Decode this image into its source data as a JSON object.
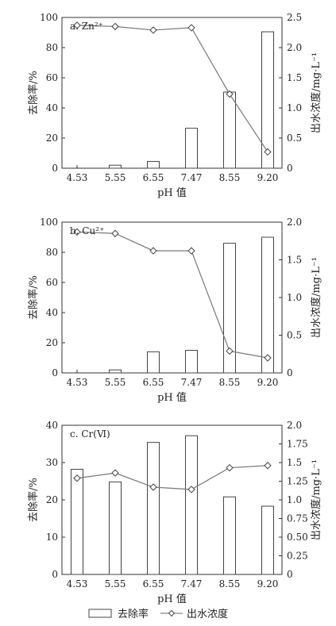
{
  "chart_data": [
    {
      "type": "bar",
      "panel_label": "a. Zn²⁺",
      "categories": [
        "4.53",
        "5.55",
        "6.55",
        "7.47",
        "8.55",
        "9.20"
      ],
      "xlabel": "pH 值",
      "ylabel": "去除率/%",
      "y2label": "出水浓度/mg·L⁻¹",
      "ylim": [
        0,
        100
      ],
      "y2lim": [
        0,
        2.5
      ],
      "yticks": [
        0,
        20,
        40,
        60,
        80,
        100
      ],
      "y2ticks": [
        "0",
        "0.5",
        "1.0",
        "1.5",
        "2.0",
        "2.5"
      ],
      "series": [
        {
          "name": "去除率",
          "kind": "bar",
          "axis": "left",
          "values": [
            0,
            2,
            4.5,
            26.5,
            50.5,
            90.5
          ]
        },
        {
          "name": "出水浓度",
          "kind": "line",
          "axis": "right",
          "values": [
            2.37,
            2.35,
            2.29,
            2.33,
            1.23,
            0.27
          ]
        }
      ]
    },
    {
      "type": "bar",
      "panel_label": "b. Cu²⁺",
      "categories": [
        "4.53",
        "5.55",
        "6.55",
        "7.47",
        "8.55",
        "9.20"
      ],
      "xlabel": "pH 值",
      "ylabel": "去除率/%",
      "y2label": "出水浓度/mg·L⁻¹",
      "ylim": [
        0,
        100
      ],
      "y2lim": [
        0,
        2.0
      ],
      "yticks": [
        0,
        20,
        40,
        60,
        80,
        100
      ],
      "y2ticks": [
        "0",
        "0.5",
        "1.0",
        "1.5",
        "2.0"
      ],
      "series": [
        {
          "name": "去除率",
          "kind": "bar",
          "axis": "left",
          "values": [
            0,
            2,
            14,
            15,
            86,
            90
          ]
        },
        {
          "name": "出水浓度",
          "kind": "line",
          "axis": "right",
          "values": [
            1.87,
            1.85,
            1.62,
            1.62,
            0.29,
            0.2
          ]
        }
      ]
    },
    {
      "type": "bar",
      "panel_label": "c. Cr(Ⅵ)",
      "categories": [
        "4.53",
        "5.55",
        "6.55",
        "7.47",
        "8.55",
        "9.20"
      ],
      "xlabel": "pH 值",
      "ylabel": "去除率/%",
      "y2label": "出水浓度/mg·L⁻¹",
      "ylim": [
        0,
        40
      ],
      "y2lim": [
        0,
        2.0
      ],
      "yticks": [
        0,
        10,
        20,
        30,
        40
      ],
      "y2ticks": [
        "0",
        "0.25",
        "0.50",
        "0.75",
        "1.0",
        "1.25",
        "1.5",
        "1.75",
        "2.0"
      ],
      "series": [
        {
          "name": "去除率",
          "kind": "bar",
          "axis": "left",
          "values": [
            28.2,
            24.8,
            35.4,
            37.2,
            20.8,
            18.3
          ]
        },
        {
          "name": "出水浓度",
          "kind": "line",
          "axis": "right",
          "values": [
            1.29,
            1.36,
            1.17,
            1.14,
            1.43,
            1.46
          ]
        }
      ]
    }
  ],
  "legend": {
    "bar_label": "去除率",
    "line_label": "出水浓度",
    "placement": "bottom"
  }
}
